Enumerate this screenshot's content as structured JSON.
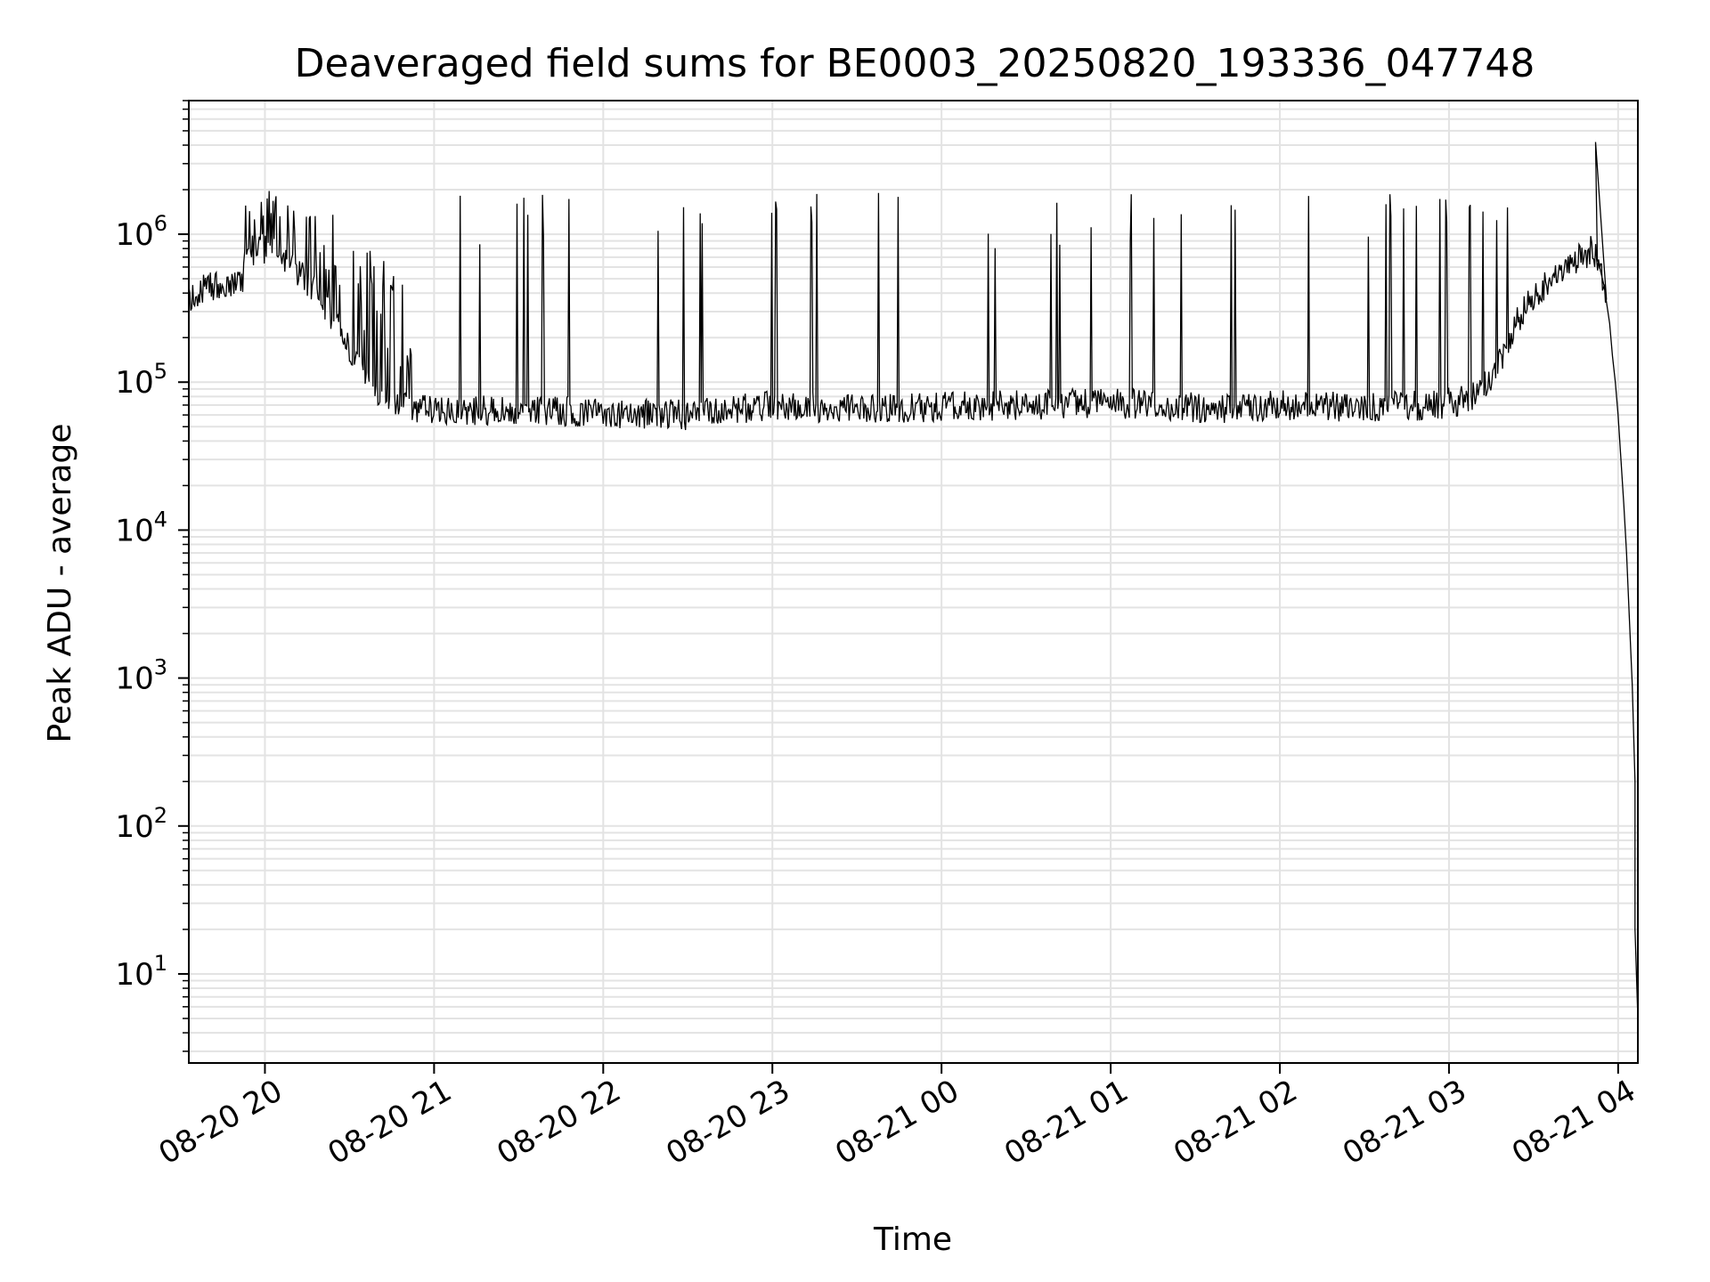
{
  "chart_data": {
    "type": "line",
    "title": "Deaveraged field sums for BE0003_20250820_193336_047748",
    "xlabel": "Time",
    "ylabel": "Peak ADU - average",
    "yscale": "log",
    "xlim": [
      "2025-08-20 19:33",
      "2025-08-21 04:07"
    ],
    "ylim": [
      2.5,
      8000000
    ],
    "grid": true,
    "legend": "none",
    "line_color": "#000000",
    "grid_color": "#e3e3e3",
    "x_ticks": [
      {
        "value": "2025-08-20 20:00",
        "label": "08-20 20"
      },
      {
        "value": "2025-08-20 21:00",
        "label": "08-20 21"
      },
      {
        "value": "2025-08-20 22:00",
        "label": "08-20 22"
      },
      {
        "value": "2025-08-20 23:00",
        "label": "08-20 23"
      },
      {
        "value": "2025-08-21 00:00",
        "label": "08-21 00"
      },
      {
        "value": "2025-08-21 01:00",
        "label": "08-21 01"
      },
      {
        "value": "2025-08-21 02:00",
        "label": "08-21 02"
      },
      {
        "value": "2025-08-21 03:00",
        "label": "08-21 03"
      },
      {
        "value": "2025-08-21 04:00",
        "label": "08-21 04"
      }
    ],
    "y_ticks": [
      {
        "value": 10,
        "base": "10",
        "exp": "1"
      },
      {
        "value": 100,
        "base": "10",
        "exp": "2"
      },
      {
        "value": 1000,
        "base": "10",
        "exp": "3"
      },
      {
        "value": 10000,
        "base": "10",
        "exp": "4"
      },
      {
        "value": 100000,
        "base": "10",
        "exp": "5"
      },
      {
        "value": 1000000,
        "base": "10",
        "exp": "6"
      }
    ],
    "series": [
      {
        "points": [
          [
            "2025-08-20 19:33",
            350000
          ],
          [
            "2025-08-20 19:38",
            420000
          ],
          [
            "2025-08-20 19:44",
            460000
          ],
          [
            "2025-08-20 19:48",
            440000
          ],
          [
            "2025-08-20 19:52",
            450000
          ],
          [
            "2025-08-20 19:53",
            750000
          ],
          [
            "2025-08-20 19:58",
            800000
          ],
          [
            "2025-08-20 20:04",
            750000
          ],
          [
            "2025-08-20 20:10",
            600000
          ],
          [
            "2025-08-20 20:16",
            450000
          ],
          [
            "2025-08-20 20:22",
            320000
          ],
          [
            "2025-08-20 20:27",
            220000
          ],
          [
            "2025-08-20 20:32",
            150000
          ],
          [
            "2025-08-20 20:36",
            110000
          ],
          [
            "2025-08-20 20:40",
            85000
          ],
          [
            "2025-08-20 20:45",
            72000
          ],
          [
            "2025-08-20 20:52",
            68000
          ],
          [
            "2025-08-20 21:00",
            66000
          ],
          [
            "2025-08-20 21:10",
            64000
          ],
          [
            "2025-08-20 21:30",
            65000
          ],
          [
            "2025-08-20 22:00",
            62000
          ],
          [
            "2025-08-20 22:30",
            60000
          ],
          [
            "2025-08-20 23:00",
            70000
          ],
          [
            "2025-08-20 23:30",
            65000
          ],
          [
            "2025-08-21 00:00",
            68000
          ],
          [
            "2025-08-21 00:30",
            70000
          ],
          [
            "2025-08-21 01:00",
            72000
          ],
          [
            "2025-08-21 01:20",
            70000
          ],
          [
            "2025-08-21 01:40",
            65000
          ],
          [
            "2025-08-21 02:00",
            70000
          ],
          [
            "2025-08-21 02:30",
            68000
          ],
          [
            "2025-08-21 02:55",
            70000
          ],
          [
            "2025-08-21 03:05",
            75000
          ],
          [
            "2025-08-21 03:12",
            90000
          ],
          [
            "2025-08-21 03:18",
            140000
          ],
          [
            "2025-08-21 03:24",
            250000
          ],
          [
            "2025-08-21 03:30",
            380000
          ],
          [
            "2025-08-21 03:36",
            480000
          ],
          [
            "2025-08-21 03:42",
            600000
          ],
          [
            "2025-08-21 03:46",
            700000
          ],
          [
            "2025-08-21 03:51",
            780000
          ],
          [
            "2025-08-21 03:53",
            650000
          ],
          [
            "2025-08-21 03:55",
            450000
          ],
          [
            "2025-08-21 03:57",
            250000
          ],
          [
            "2025-08-21 03:58",
            150000
          ],
          [
            "2025-08-21 03:59",
            100000
          ],
          [
            "2025-08-21 04:00",
            60000
          ],
          [
            "2025-08-21 04:01",
            30000
          ],
          [
            "2025-08-21 04:02",
            15000
          ],
          [
            "2025-08-21 04:03",
            7000
          ],
          [
            "2025-08-21 04:04",
            2500
          ],
          [
            "2025-08-21 04:05",
            900
          ],
          [
            "2025-08-21 04:06",
            200
          ],
          [
            "2025-08-21 04:06",
            20
          ],
          [
            "2025-08-21 04:07",
            5
          ]
        ]
      }
    ]
  }
}
